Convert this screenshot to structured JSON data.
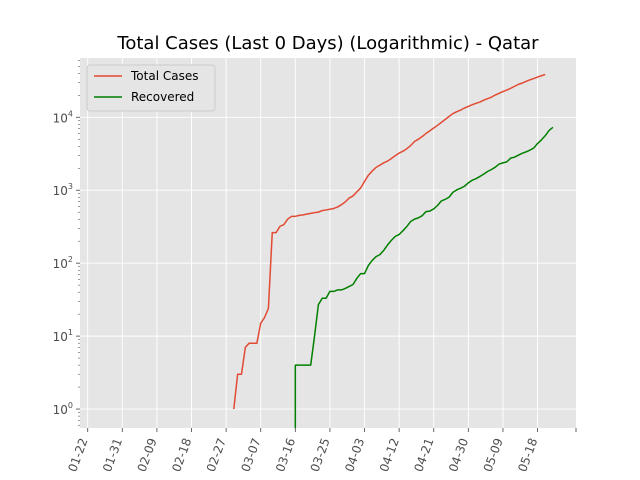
{
  "chart_data": {
    "type": "line",
    "title": "Total Cases (Last 0 Days) (Logarithmic) - Qatar",
    "xlabel": "",
    "ylabel": "",
    "yscale": "log",
    "ylim": [
      0.55,
      65000
    ],
    "xlim": [
      "2020-01-20",
      "2020-05-28"
    ],
    "grid": true,
    "legend_position": "top-left",
    "x_ticks": [
      "01-22",
      "01-31",
      "02-09",
      "02-18",
      "02-27",
      "03-07",
      "03-16",
      "03-25",
      "04-03",
      "04-12",
      "04-21",
      "04-30",
      "05-09",
      "05-18"
    ],
    "y_ticks": [
      {
        "value": 1,
        "base": "10",
        "exp": "0"
      },
      {
        "value": 10,
        "base": "10",
        "exp": "1"
      },
      {
        "value": 100,
        "base": "10",
        "exp": "2"
      },
      {
        "value": 1000,
        "base": "10",
        "exp": "3"
      },
      {
        "value": 10000,
        "base": "10",
        "exp": "4"
      }
    ],
    "series": [
      {
        "name": "Total Cases",
        "color": "#e24a33",
        "points": [
          [
            "2020-02-29",
            1
          ],
          [
            "2020-03-01",
            3
          ],
          [
            "2020-03-02",
            3
          ],
          [
            "2020-03-03",
            7
          ],
          [
            "2020-03-04",
            8
          ],
          [
            "2020-03-05",
            8
          ],
          [
            "2020-03-06",
            8
          ],
          [
            "2020-03-07",
            15
          ],
          [
            "2020-03-08",
            18
          ],
          [
            "2020-03-09",
            24
          ],
          [
            "2020-03-10",
            262
          ],
          [
            "2020-03-11",
            262
          ],
          [
            "2020-03-12",
            320
          ],
          [
            "2020-03-13",
            337
          ],
          [
            "2020-03-14",
            401
          ],
          [
            "2020-03-15",
            439
          ],
          [
            "2020-03-16",
            439
          ],
          [
            "2020-03-17",
            452
          ],
          [
            "2020-03-18",
            460
          ],
          [
            "2020-03-19",
            470
          ],
          [
            "2020-03-20",
            481
          ],
          [
            "2020-03-21",
            494
          ],
          [
            "2020-03-22",
            501
          ],
          [
            "2020-03-23",
            526
          ],
          [
            "2020-03-24",
            537
          ],
          [
            "2020-03-25",
            549
          ],
          [
            "2020-03-26",
            562
          ],
          [
            "2020-03-27",
            590
          ],
          [
            "2020-03-28",
            634
          ],
          [
            "2020-03-29",
            693
          ],
          [
            "2020-03-30",
            781
          ],
          [
            "2020-03-31",
            835
          ],
          [
            "2020-04-01",
            949
          ],
          [
            "2020-04-02",
            1075
          ],
          [
            "2020-04-03",
            1325
          ],
          [
            "2020-04-04",
            1604
          ],
          [
            "2020-04-05",
            1832
          ],
          [
            "2020-04-06",
            2057
          ],
          [
            "2020-04-07",
            2210
          ],
          [
            "2020-04-08",
            2376
          ],
          [
            "2020-04-09",
            2512
          ],
          [
            "2020-04-10",
            2728
          ],
          [
            "2020-04-11",
            2979
          ],
          [
            "2020-04-12",
            3231
          ],
          [
            "2020-04-13",
            3428
          ],
          [
            "2020-04-14",
            3711
          ],
          [
            "2020-04-15",
            4103
          ],
          [
            "2020-04-16",
            4663
          ],
          [
            "2020-04-17",
            5008
          ],
          [
            "2020-04-18",
            5448
          ],
          [
            "2020-04-19",
            6015
          ],
          [
            "2020-04-20",
            6533
          ],
          [
            "2020-04-21",
            7141
          ],
          [
            "2020-04-22",
            7764
          ],
          [
            "2020-04-23",
            8525
          ],
          [
            "2020-04-24",
            9358
          ],
          [
            "2020-04-25",
            10287
          ],
          [
            "2020-04-26",
            11244
          ],
          [
            "2020-04-27",
            11921
          ],
          [
            "2020-04-28",
            12564
          ],
          [
            "2020-04-29",
            13409
          ],
          [
            "2020-04-30",
            14096
          ],
          [
            "2020-05-01",
            14872
          ],
          [
            "2020-05-02",
            15551
          ],
          [
            "2020-05-03",
            16191
          ],
          [
            "2020-05-04",
            17142
          ],
          [
            "2020-05-05",
            17972
          ],
          [
            "2020-05-06",
            18890
          ],
          [
            "2020-05-07",
            20201
          ],
          [
            "2020-05-08",
            21331
          ],
          [
            "2020-05-09",
            22520
          ],
          [
            "2020-05-10",
            23623
          ],
          [
            "2020-05-11",
            24941
          ],
          [
            "2020-05-12",
            26539
          ],
          [
            "2020-05-13",
            28272
          ],
          [
            "2020-05-14",
            29425
          ],
          [
            "2020-05-15",
            30972
          ],
          [
            "2020-05-16",
            32604
          ],
          [
            "2020-05-17",
            33969
          ],
          [
            "2020-05-18",
            35606
          ],
          [
            "2020-05-19",
            37097
          ],
          [
            "2020-05-20",
            38651
          ]
        ]
      },
      {
        "name": "Recovered",
        "color": "#008000",
        "points": [
          [
            "2020-03-16",
            0.5
          ],
          [
            "2020-03-16",
            4
          ],
          [
            "2020-03-17",
            4
          ],
          [
            "2020-03-18",
            4
          ],
          [
            "2020-03-19",
            4
          ],
          [
            "2020-03-20",
            4
          ],
          [
            "2020-03-21",
            10
          ],
          [
            "2020-03-22",
            27
          ],
          [
            "2020-03-23",
            33
          ],
          [
            "2020-03-24",
            33
          ],
          [
            "2020-03-25",
            41
          ],
          [
            "2020-03-26",
            41
          ],
          [
            "2020-03-27",
            43
          ],
          [
            "2020-03-28",
            43
          ],
          [
            "2020-03-29",
            45
          ],
          [
            "2020-03-30",
            48
          ],
          [
            "2020-03-31",
            51
          ],
          [
            "2020-04-01",
            62
          ],
          [
            "2020-04-02",
            72
          ],
          [
            "2020-04-03",
            72
          ],
          [
            "2020-04-04",
            93
          ],
          [
            "2020-04-05",
            109
          ],
          [
            "2020-04-06",
            123
          ],
          [
            "2020-04-07",
            131
          ],
          [
            "2020-04-08",
            150
          ],
          [
            "2020-04-09",
            178
          ],
          [
            "2020-04-10",
            206
          ],
          [
            "2020-04-11",
            233
          ],
          [
            "2020-04-12",
            247
          ],
          [
            "2020-04-13",
            279
          ],
          [
            "2020-04-14",
            318
          ],
          [
            "2020-04-15",
            373
          ],
          [
            "2020-04-16",
            402
          ],
          [
            "2020-04-17",
            418
          ],
          [
            "2020-04-18",
            448
          ],
          [
            "2020-04-19",
            510
          ],
          [
            "2020-04-20",
            518
          ],
          [
            "2020-04-21",
            555
          ],
          [
            "2020-04-22",
            620
          ],
          [
            "2020-04-23",
            714
          ],
          [
            "2020-04-24",
            750
          ],
          [
            "2020-04-25",
            805
          ],
          [
            "2020-04-26",
            939
          ],
          [
            "2020-04-27",
            1012
          ],
          [
            "2020-04-28",
            1066
          ],
          [
            "2020-04-29",
            1134
          ],
          [
            "2020-04-30",
            1262
          ],
          [
            "2020-05-01",
            1372
          ],
          [
            "2020-05-02",
            1439
          ],
          [
            "2020-05-03",
            1545
          ],
          [
            "2020-05-04",
            1665
          ],
          [
            "2020-05-05",
            1808
          ],
          [
            "2020-05-06",
            1924
          ],
          [
            "2020-05-07",
            2070
          ],
          [
            "2020-05-08",
            2286
          ],
          [
            "2020-05-09",
            2370
          ],
          [
            "2020-05-10",
            2449
          ],
          [
            "2020-05-11",
            2753
          ],
          [
            "2020-05-12",
            2840
          ],
          [
            "2020-05-13",
            3019
          ],
          [
            "2020-05-14",
            3204
          ],
          [
            "2020-05-15",
            3356
          ],
          [
            "2020-05-16",
            3546
          ],
          [
            "2020-05-17",
            3788
          ],
          [
            "2020-05-18",
            4370
          ],
          [
            "2020-05-19",
            4899
          ],
          [
            "2020-05-20",
            5599
          ],
          [
            "2020-05-21",
            6600
          ],
          [
            "2020-05-22",
            7288
          ]
        ]
      }
    ]
  }
}
